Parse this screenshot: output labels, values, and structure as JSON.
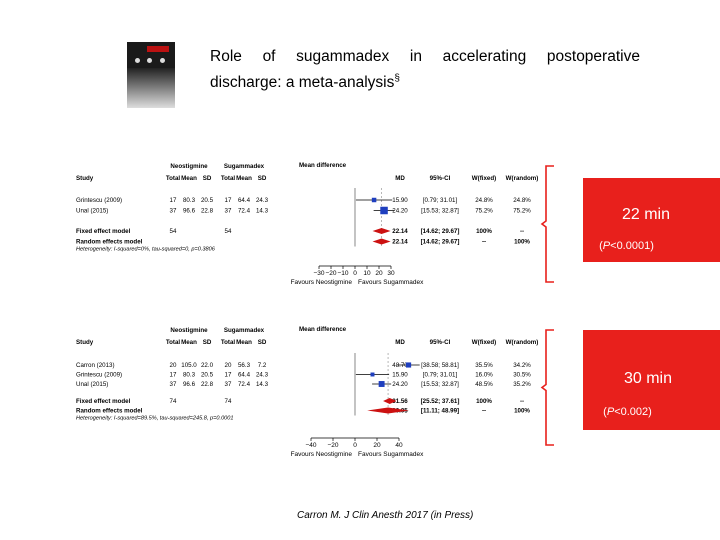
{
  "slide": {
    "title_line1_words": [
      "Role",
      "of",
      "sugammadex",
      "in",
      "accelerating",
      "postoperative"
    ],
    "title_line2": "discharge: a meta-analysis",
    "title_sup": "§",
    "citation": "Carron M. J Clin Anesth 2017 (in Press)",
    "thumbnail_icon": "journal-cover-icon",
    "accent_color": "#e8201c",
    "brace_color": "#e8201c",
    "mean_color": "#1f3fbf",
    "pooled_color": "#cc1111"
  },
  "callouts": [
    {
      "big": "22 min",
      "small": "(P<0.0001)"
    },
    {
      "big": "30 min",
      "small": "(P<0.002)"
    }
  ],
  "chart_data": [
    {
      "type": "forest",
      "headers": {
        "study": "Study",
        "group1": "Neostigmine",
        "group2": "Sugammadex",
        "sub": [
          "Total",
          "Mean",
          "SD",
          "Total",
          "Mean",
          "SD"
        ],
        "plot": "Mean difference",
        "md": "MD",
        "ci": "95%-CI",
        "wf": "W(fixed)",
        "wr": "W(random)"
      },
      "studies": [
        {
          "name": "Grintescu (2009)",
          "n1": "17",
          "mean1": "80.3",
          "sd1": "20.5",
          "n2": "17",
          "mean2": "64.4",
          "sd2": "24.3",
          "md": 15.9,
          "md_text": "15.90",
          "ci_low": 0.79,
          "ci_high": 31.01,
          "ci_text": "[0.79; 31.01]",
          "wf": "24.8%",
          "wr": "24.8%"
        },
        {
          "name": "Unal (2015)",
          "n1": "37",
          "mean1": "96.6",
          "sd1": "22.8",
          "n2": "37",
          "mean2": "72.4",
          "sd2": "14.3",
          "md": 24.2,
          "md_text": "24.20",
          "ci_low": 15.53,
          "ci_high": 32.87,
          "ci_text": "[15.53; 32.87]",
          "wf": "75.2%",
          "wr": "75.2%"
        }
      ],
      "pooled": [
        {
          "name": "Fixed effect model",
          "n1": "54",
          "n2": "54",
          "md": 22.14,
          "md_text": "22.14",
          "ci_low": 14.62,
          "ci_high": 29.67,
          "ci_text": "[14.62; 29.67]",
          "wf": "100%",
          "wr": "--"
        },
        {
          "name": "Random effects model",
          "n1": "",
          "n2": "",
          "md": 22.14,
          "md_text": "22.14",
          "ci_low": 14.62,
          "ci_high": 29.67,
          "ci_text": "[14.62; 29.67]",
          "wf": "--",
          "wr": "100%"
        }
      ],
      "heterogeneity": "Heterogeneity: I-squared=0%, tau-squared=0, p=0.3806",
      "xlim": [
        -30,
        30
      ],
      "ticks": [
        -30,
        -20,
        -10,
        0,
        10,
        20,
        30
      ],
      "tick_labels": [
        "−30",
        "−20",
        "−10",
        "0",
        "10",
        "20",
        "30"
      ],
      "xlabel_left": "Favours Neostigmine",
      "xlabel_right": "Favours Sugammadex"
    },
    {
      "type": "forest",
      "headers": {
        "study": "Study",
        "group1": "Neostigmine",
        "group2": "Sugammadex",
        "sub": [
          "Total",
          "Mean",
          "SD",
          "Total",
          "Mean",
          "SD"
        ],
        "plot": "Mean difference",
        "md": "MD",
        "ci": "95%-CI",
        "wf": "W(fixed)",
        "wr": "W(random)"
      },
      "studies": [
        {
          "name": "Carron (2013)",
          "n1": "20",
          "mean1": "105.0",
          "sd1": "22.0",
          "n2": "20",
          "mean2": "56.3",
          "sd2": "7.2",
          "md": 48.7,
          "md_text": "48.70",
          "ci_low": 38.58,
          "ci_high": 58.81,
          "ci_text": "[38.58; 58.81]",
          "wf": "35.5%",
          "wr": "34.2%"
        },
        {
          "name": "Grintescu (2009)",
          "n1": "17",
          "mean1": "80.3",
          "sd1": "20.5",
          "n2": "17",
          "mean2": "64.4",
          "sd2": "24.3",
          "md": 15.9,
          "md_text": "15.90",
          "ci_low": 0.79,
          "ci_high": 31.01,
          "ci_text": "[0.79; 31.01]",
          "wf": "16.0%",
          "wr": "30.5%"
        },
        {
          "name": "Unal (2015)",
          "n1": "37",
          "mean1": "96.6",
          "sd1": "22.8",
          "n2": "37",
          "mean2": "72.4",
          "sd2": "14.3",
          "md": 24.2,
          "md_text": "24.20",
          "ci_low": 15.53,
          "ci_high": 32.87,
          "ci_text": "[15.53; 32.87]",
          "wf": "48.5%",
          "wr": "35.2%"
        }
      ],
      "pooled": [
        {
          "name": "Fixed effect model",
          "n1": "74",
          "n2": "74",
          "md": 31.56,
          "md_text": "31.56",
          "ci_low": 25.52,
          "ci_high": 37.61,
          "ci_text": "[25.52; 37.61]",
          "wf": "100%",
          "wr": "--"
        },
        {
          "name": "Random effects model",
          "n1": "",
          "n2": "",
          "md": 30.05,
          "md_text": "30.05",
          "ci_low": 11.11,
          "ci_high": 48.99,
          "ci_text": "[11.11; 48.99]",
          "wf": "--",
          "wr": "100%"
        }
      ],
      "heterogeneity": "Heterogeneity: I-squared=89.5%, tau-squared=245.8, p=0.0001",
      "xlim": [
        -40,
        40
      ],
      "ticks": [
        -40,
        -20,
        0,
        20,
        40
      ],
      "tick_labels": [
        "−40",
        "−20",
        "0",
        "20",
        "40"
      ],
      "xlabel_left": "Favours Neostigmine",
      "xlabel_right": "Favours Sugammadex"
    }
  ]
}
